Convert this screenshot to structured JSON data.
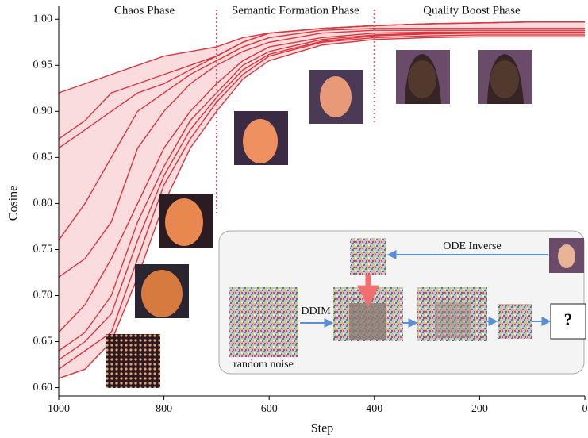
{
  "chart_data": {
    "type": "line",
    "x_label": "Step",
    "y_label": "Cosine",
    "x": [
      1000,
      950,
      900,
      850,
      800,
      750,
      700,
      650,
      600,
      500,
      400,
      300,
      200,
      100,
      0
    ],
    "color": "#d9363e",
    "band_color": "#f9c9cc",
    "series": [
      {
        "values": [
          0.92,
          0.93,
          0.94,
          0.95,
          0.96,
          0.965,
          0.97,
          0.98,
          0.985,
          0.99,
          0.993,
          0.995,
          0.996,
          0.997,
          0.997
        ]
      },
      {
        "values": [
          0.87,
          0.89,
          0.92,
          0.93,
          0.94,
          0.95,
          0.96,
          0.975,
          0.985,
          0.99,
          0.993,
          0.995,
          0.996,
          0.997,
          0.997
        ]
      },
      {
        "values": [
          0.86,
          0.88,
          0.9,
          0.92,
          0.93,
          0.945,
          0.96,
          0.975,
          0.985,
          0.99,
          0.993,
          0.995,
          0.996,
          0.997,
          0.997
        ]
      },
      {
        "values": [
          0.76,
          0.8,
          0.85,
          0.9,
          0.92,
          0.94,
          0.955,
          0.97,
          0.98,
          0.988,
          0.99,
          0.99,
          0.99,
          0.99,
          0.99
        ]
      },
      {
        "values": [
          0.72,
          0.74,
          0.78,
          0.86,
          0.9,
          0.93,
          0.95,
          0.965,
          0.975,
          0.985,
          0.988,
          0.988,
          0.988,
          0.988,
          0.988
        ]
      },
      {
        "values": [
          0.66,
          0.69,
          0.74,
          0.8,
          0.86,
          0.9,
          0.93,
          0.955,
          0.97,
          0.98,
          0.985,
          0.986,
          0.986,
          0.986,
          0.986
        ]
      },
      {
        "values": [
          0.64,
          0.66,
          0.7,
          0.78,
          0.84,
          0.89,
          0.92,
          0.95,
          0.965,
          0.978,
          0.983,
          0.985,
          0.986,
          0.986,
          0.986
        ]
      },
      {
        "values": [
          0.62,
          0.64,
          0.66,
          0.74,
          0.82,
          0.87,
          0.91,
          0.94,
          0.96,
          0.975,
          0.98,
          0.982,
          0.983,
          0.983,
          0.983
        ]
      },
      {
        "values": [
          0.61,
          0.62,
          0.65,
          0.72,
          0.8,
          0.86,
          0.9,
          0.935,
          0.955,
          0.972,
          0.978,
          0.98,
          0.981,
          0.981,
          0.981
        ]
      },
      {
        "values": [
          0.63,
          0.65,
          0.68,
          0.76,
          0.83,
          0.88,
          0.915,
          0.945,
          0.962,
          0.976,
          0.982,
          0.984,
          0.985,
          0.985,
          0.985
        ]
      }
    ],
    "xlim": [
      1000,
      0
    ],
    "xticks": [
      1000,
      800,
      600,
      400,
      200,
      0
    ],
    "ylim": [
      0.591,
      1.014
    ],
    "yticks": [
      {
        "value": 0.6,
        "label": "0.60"
      },
      {
        "value": 0.65,
        "label": "0.65"
      },
      {
        "value": 0.7,
        "label": "0.70"
      },
      {
        "value": 0.75,
        "label": "0.75"
      },
      {
        "value": 0.8,
        "label": "0.80"
      },
      {
        "value": 0.85,
        "label": "0.85"
      },
      {
        "value": 0.9,
        "label": "0.90"
      },
      {
        "value": 0.95,
        "label": "0.95"
      },
      {
        "value": 1,
        "label": "1.00"
      }
    ],
    "phase_boundaries": [
      700,
      400
    ],
    "phases": [
      "Chaos Phase",
      "Semantic Formation Phase",
      "Quality Boost Phase"
    ],
    "inset": {
      "ode_inverse": "ODE Inverse",
      "ddim": "DDIM",
      "random_noise": "random noise",
      "unknown": "?"
    }
  }
}
